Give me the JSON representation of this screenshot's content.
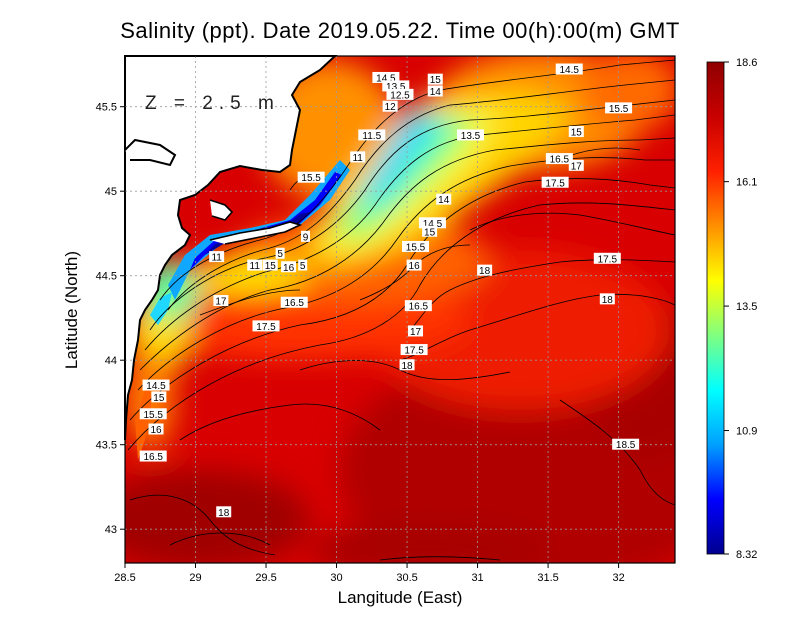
{
  "chart_data": {
    "type": "heatmap",
    "title": "Salinity (ppt). Date 2019.05.22. Time 00(h):00(m) GMT",
    "xlabel": "Langitude (East)",
    "ylabel": "Latitude (North)",
    "annotation": "Z = 2.5 m",
    "xlim": [
      28.5,
      32.4
    ],
    "ylim": [
      42.8,
      45.8
    ],
    "x_ticks": [
      "28.5",
      "29",
      "29.5",
      "30",
      "30.5",
      "31",
      "31.5",
      "32"
    ],
    "x_tick_values": [
      28.5,
      29,
      29.5,
      30,
      30.5,
      31,
      31.5,
      32
    ],
    "y_ticks": [
      "43",
      "43.5",
      "44",
      "44.5",
      "45",
      "45.5"
    ],
    "y_tick_values": [
      43,
      43.5,
      44,
      44.5,
      45,
      45.5
    ],
    "grid": true,
    "colorbar": {
      "min": 8.32,
      "max": 18.6,
      "ticks": [
        "18.6",
        "16.1",
        "13.5",
        "10.9",
        "8.32"
      ],
      "tick_values": [
        18.6,
        16.1,
        13.5,
        10.9,
        8.32
      ],
      "colors": [
        "#00008f",
        "#0000ff",
        "#00a0ff",
        "#00ffff",
        "#80ff80",
        "#ffff00",
        "#ff9000",
        "#ff2000",
        "#c80000",
        "#8f0000"
      ]
    },
    "contour_labels": [
      {
        "text": "14.5",
        "lon": 30.35,
        "lat": 45.67
      },
      {
        "text": "13.5",
        "lon": 30.42,
        "lat": 45.62
      },
      {
        "text": "12.5",
        "lon": 30.45,
        "lat": 45.57
      },
      {
        "text": "12",
        "lon": 30.38,
        "lat": 45.5
      },
      {
        "text": "15",
        "lon": 30.7,
        "lat": 45.66
      },
      {
        "text": "14",
        "lon": 30.7,
        "lat": 45.59
      },
      {
        "text": "14.5",
        "lon": 31.65,
        "lat": 45.72
      },
      {
        "text": "15.5",
        "lon": 32.0,
        "lat": 45.49
      },
      {
        "text": "11.5",
        "lon": 30.25,
        "lat": 45.33
      },
      {
        "text": "13.5",
        "lon": 30.95,
        "lat": 45.33
      },
      {
        "text": "15",
        "lon": 31.7,
        "lat": 45.35
      },
      {
        "text": "11",
        "lon": 30.15,
        "lat": 45.2
      },
      {
        "text": "16.5",
        "lon": 31.58,
        "lat": 45.19
      },
      {
        "text": "17",
        "lon": 31.7,
        "lat": 45.15
      },
      {
        "text": "15.5",
        "lon": 29.82,
        "lat": 45.08
      },
      {
        "text": "17.5",
        "lon": 31.55,
        "lat": 45.05
      },
      {
        "text": "14",
        "lon": 30.76,
        "lat": 44.95
      },
      {
        "text": "14.5",
        "lon": 30.68,
        "lat": 44.81
      },
      {
        "text": "15",
        "lon": 30.66,
        "lat": 44.76
      },
      {
        "text": "9",
        "lon": 29.78,
        "lat": 44.73
      },
      {
        "text": "15.5",
        "lon": 30.56,
        "lat": 44.67
      },
      {
        "text": "11",
        "lon": 29.15,
        "lat": 44.61
      },
      {
        "text": "5",
        "lon": 29.6,
        "lat": 44.63
      },
      {
        "text": "11",
        "lon": 29.42,
        "lat": 44.56
      },
      {
        "text": "15",
        "lon": 29.53,
        "lat": 44.56
      },
      {
        "text": "16",
        "lon": 29.66,
        "lat": 44.55
      },
      {
        "text": "5",
        "lon": 29.76,
        "lat": 44.56
      },
      {
        "text": "16",
        "lon": 30.55,
        "lat": 44.56
      },
      {
        "text": "17.5",
        "lon": 31.92,
        "lat": 44.6
      },
      {
        "text": "18",
        "lon": 31.05,
        "lat": 44.53
      },
      {
        "text": "17",
        "lon": 29.18,
        "lat": 44.35
      },
      {
        "text": "16.5",
        "lon": 29.7,
        "lat": 44.34
      },
      {
        "text": "16.5",
        "lon": 30.58,
        "lat": 44.32
      },
      {
        "text": "18",
        "lon": 31.92,
        "lat": 44.36
      },
      {
        "text": "17.5",
        "lon": 29.5,
        "lat": 44.2
      },
      {
        "text": "17",
        "lon": 30.56,
        "lat": 44.17
      },
      {
        "text": "17.5",
        "lon": 30.55,
        "lat": 44.06
      },
      {
        "text": "18",
        "lon": 30.5,
        "lat": 43.97
      },
      {
        "text": "14.5",
        "lon": 28.72,
        "lat": 43.85
      },
      {
        "text": "15",
        "lon": 28.74,
        "lat": 43.78
      },
      {
        "text": "15.5",
        "lon": 28.7,
        "lat": 43.68
      },
      {
        "text": "16",
        "lon": 28.72,
        "lat": 43.59
      },
      {
        "text": "16.5",
        "lon": 28.7,
        "lat": 43.43
      },
      {
        "text": "18.5",
        "lon": 32.05,
        "lat": 43.5
      },
      {
        "text": "18",
        "lon": 29.2,
        "lat": 43.1
      }
    ]
  }
}
